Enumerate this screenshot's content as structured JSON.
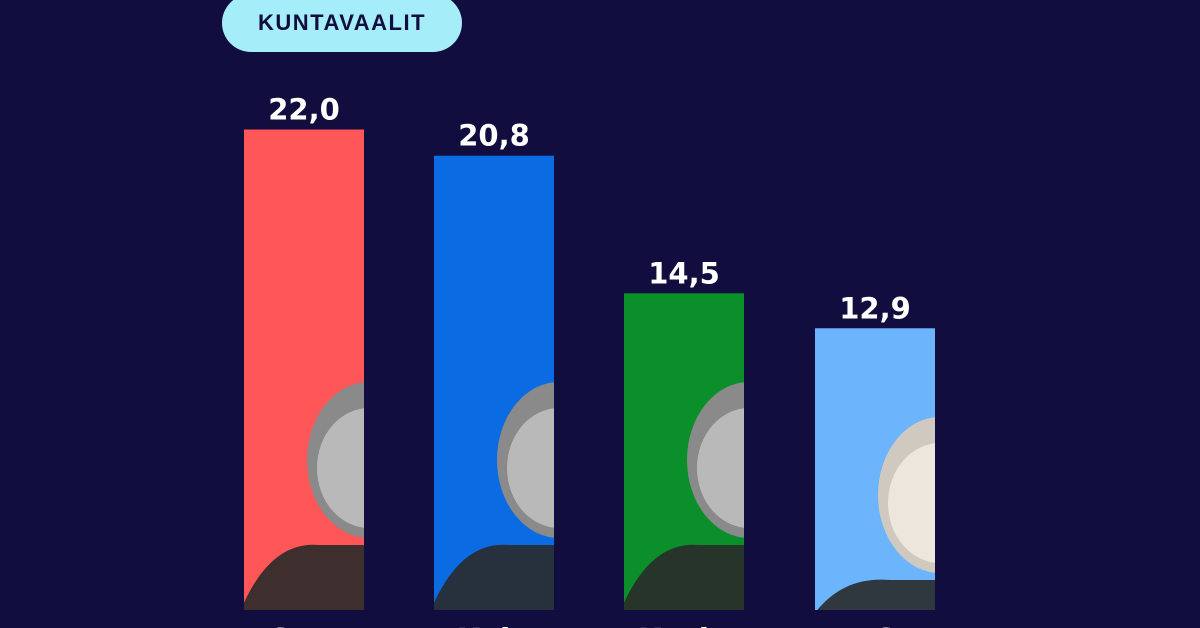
{
  "header": {
    "badge_label": "KUNTAVAALIT"
  },
  "colors": {
    "background": "#110d3f",
    "badge": "#a5edf9",
    "photo": "#2a2a2a"
  },
  "chart_data": {
    "type": "bar",
    "categories": [
      "SDP",
      "Kok.",
      "Kesk.",
      "PS"
    ],
    "values": [
      22.0,
      20.8,
      14.5,
      12.9
    ],
    "value_labels": [
      "22,0",
      "20,8",
      "14,5",
      "12,9"
    ],
    "bar_colors": [
      "#ff5757",
      "#0b6be3",
      "#0b8f2a",
      "#6cb4fc"
    ],
    "ylim": [
      0,
      25
    ],
    "grid": false,
    "legend": "none",
    "xlabel": "",
    "ylabel": ""
  }
}
